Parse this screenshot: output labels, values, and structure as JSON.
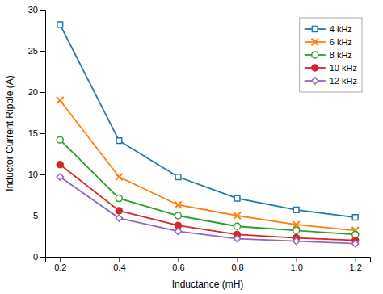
{
  "chart_data": {
    "type": "line",
    "xlabel": "Inductance (mH)",
    "ylabel": "Inductor Current Ripple (A)",
    "x": [
      0.2,
      0.4,
      0.6,
      0.8,
      1.0,
      1.2
    ],
    "series": [
      {
        "name": "4 kHz",
        "values": [
          28.2,
          14.1,
          9.7,
          7.1,
          5.7,
          4.8
        ],
        "marker": "square-open"
      },
      {
        "name": "6 kHz",
        "values": [
          19.0,
          9.7,
          6.3,
          5.0,
          3.9,
          3.2
        ],
        "marker": "x"
      },
      {
        "name": "8 kHz",
        "values": [
          14.2,
          7.1,
          5.0,
          3.7,
          3.2,
          2.7
        ],
        "marker": "circle-open"
      },
      {
        "name": "10 kHz",
        "values": [
          11.2,
          5.6,
          3.8,
          2.7,
          2.3,
          2.0
        ],
        "marker": "circle"
      },
      {
        "name": "12 kHz",
        "values": [
          9.7,
          4.7,
          3.1,
          2.2,
          1.9,
          1.6
        ],
        "marker": "diamond-open"
      }
    ],
    "xlim": [
      0.15,
      1.25
    ],
    "ylim": [
      0,
      30
    ],
    "xticks": [
      0.2,
      0.4,
      0.6,
      0.8,
      {
        "value": 1.0,
        "label": "1.0"
      },
      1.2
    ],
    "yticks": [
      0,
      5,
      10,
      15,
      20,
      25,
      30
    ],
    "legend": "upper-right",
    "grid": false
  }
}
